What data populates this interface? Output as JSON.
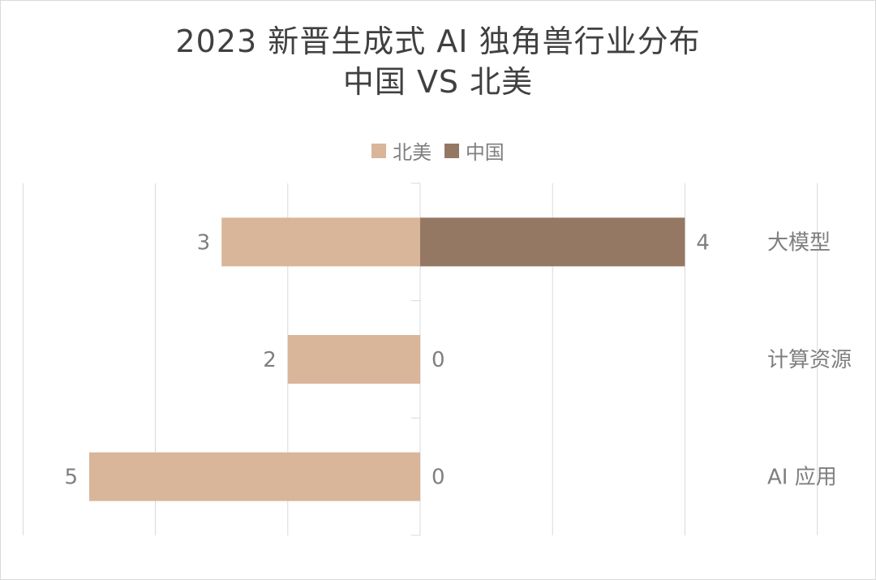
{
  "chart_data": {
    "type": "bar",
    "orientation": "horizontal-diverging",
    "title": "2023 新晋生成式 AI 独角兽行业分布",
    "subtitle": "中国 VS 北美",
    "categories": [
      "大模型",
      "计算资源",
      "AI 应用"
    ],
    "series": [
      {
        "name": "北美",
        "values": [
          3,
          2,
          5
        ],
        "color": "#d9b59a",
        "side": "left"
      },
      {
        "name": "中国",
        "values": [
          4,
          0,
          0
        ],
        "color": "#957863",
        "side": "right"
      }
    ],
    "xlim": [
      -6,
      6
    ],
    "grid": true,
    "legend_position": "top"
  }
}
